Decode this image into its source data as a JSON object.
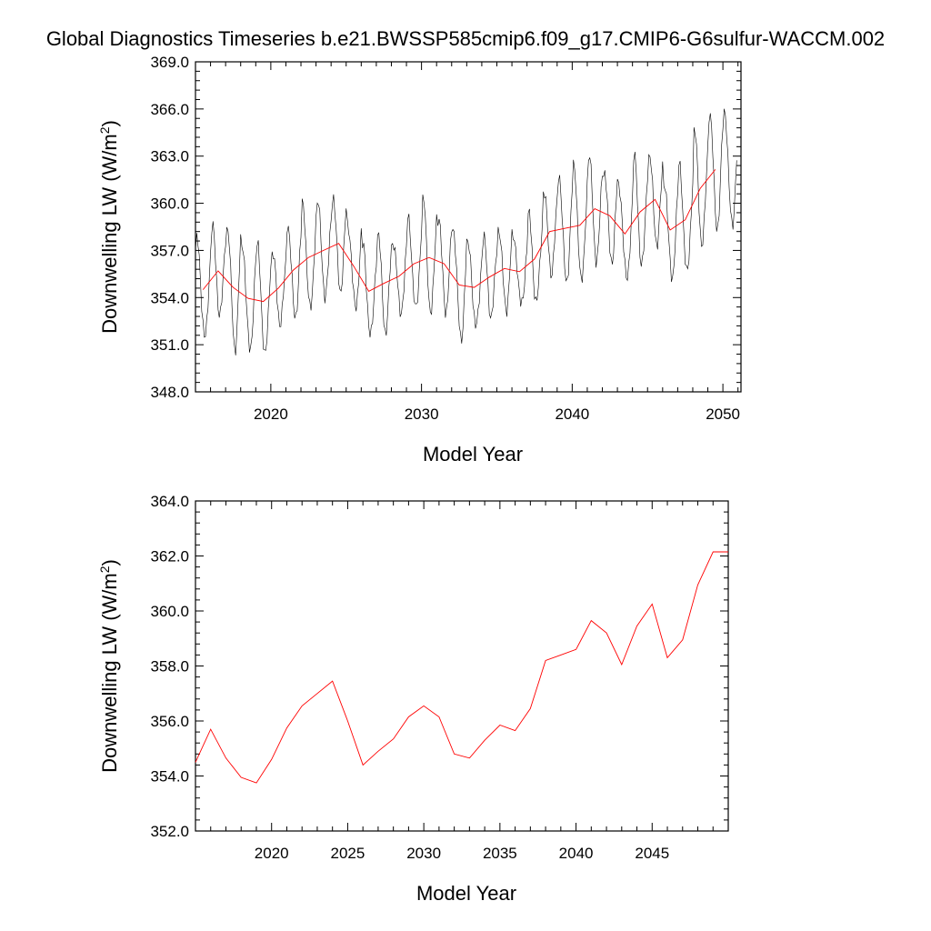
{
  "title": "Global Diagnostics Timeseries b.e21.BWSSP585cmip6.f09_g17.CMIP6-G6sulfur-WACCM.002",
  "colors": {
    "monthly": "#000000",
    "annual": "#ff0000",
    "frame": "#000000"
  },
  "chart_data": [
    {
      "type": "line",
      "xlabel": "Model Year",
      "ylabel_main": "Downwelling LW (W/m",
      "ylabel_sup": "2",
      "ylabel_close": ")",
      "xlim": [
        2015,
        2051.2
      ],
      "ylim": [
        348,
        369
      ],
      "yticks": [
        348,
        351,
        354,
        357,
        360,
        363,
        366,
        369
      ],
      "ytick_labels": [
        "348.0",
        "351.0",
        "354.0",
        "357.0",
        "360.0",
        "363.0",
        "366.0",
        "369.0"
      ],
      "xticks": [
        2020,
        2030,
        2040,
        2050
      ],
      "xtick_labels": [
        "2020",
        "2030",
        "2040",
        "2050"
      ],
      "series": [
        {
          "kind": "monthly",
          "start": 2015.0,
          "step": 0.083333,
          "seasonal_amplitude": [
            3.2,
            2.8,
            3.9,
            3.4,
            3.5,
            2.2,
            3.0,
            3.4,
            3.0,
            3.0,
            2.7,
            2.9,
            3.1,
            2.3,
            3.0,
            3.6,
            3.0,
            3.6,
            2.6,
            2.5,
            2.6,
            2.2,
            2.8,
            2.6,
            3.5,
            3.7,
            3.3,
            2.9,
            3.0,
            3.5,
            2.8,
            3.1,
            3.5,
            3.6,
            3.7
          ],
          "annual_means_ref": "annual"
        },
        {
          "kind": "annual",
          "x": [
            2015.5,
            2016.5,
            2017.5,
            2018.5,
            2019.5,
            2020.5,
            2021.5,
            2022.5,
            2023.5,
            2024.5,
            2025.5,
            2026.5,
            2027.5,
            2028.5,
            2029.5,
            2030.5,
            2031.5,
            2032.5,
            2033.5,
            2034.5,
            2035.5,
            2036.5,
            2037.5,
            2038.5,
            2039.5,
            2040.5,
            2041.5,
            2042.5,
            2043.5,
            2044.5,
            2045.5,
            2046.5,
            2047.5,
            2048.5,
            2049.5
          ],
          "values": [
            354.5,
            355.7,
            354.65,
            353.95,
            353.75,
            354.6,
            355.75,
            356.55,
            357.0,
            357.45,
            356.0,
            354.4,
            354.9,
            355.35,
            356.15,
            356.55,
            356.15,
            354.8,
            354.65,
            355.3,
            355.85,
            355.65,
            356.45,
            358.2,
            358.4,
            358.6,
            359.65,
            359.2,
            358.05,
            359.45,
            360.25,
            358.3,
            358.95,
            360.95,
            362.15
          ]
        }
      ]
    },
    {
      "type": "line",
      "xlabel": "Model Year",
      "ylabel_main": "Downwelling LW (W/m",
      "ylabel_sup": "2",
      "ylabel_close": ")",
      "xlim": [
        2015,
        2050
      ],
      "ylim": [
        352,
        364
      ],
      "yticks": [
        352,
        354,
        356,
        358,
        360,
        362,
        364
      ],
      "ytick_labels": [
        "352.0",
        "354.0",
        "356.0",
        "358.0",
        "360.0",
        "362.0",
        "364.0"
      ],
      "xticks": [
        2020,
        2025,
        2030,
        2035,
        2040,
        2045
      ],
      "xtick_labels": [
        "2020",
        "2025",
        "2030",
        "2035",
        "2040",
        "2045"
      ],
      "series": [
        {
          "kind": "annual",
          "x": [
            2015.0,
            2016.0,
            2017.0,
            2018.0,
            2019.0,
            2020.0,
            2021.0,
            2022.0,
            2023.0,
            2024.0,
            2025.0,
            2026.0,
            2027.0,
            2028.0,
            2029.0,
            2030.0,
            2031.0,
            2032.0,
            2033.0,
            2034.0,
            2035.0,
            2036.0,
            2037.0,
            2038.0,
            2039.0,
            2040.0,
            2041.0,
            2042.0,
            2043.0,
            2044.0,
            2045.0,
            2046.0,
            2047.0,
            2048.0,
            2049.0,
            2050.0
          ],
          "values": [
            354.5,
            355.7,
            354.65,
            353.95,
            353.75,
            354.6,
            355.75,
            356.55,
            357.0,
            357.45,
            356.0,
            354.4,
            354.9,
            355.35,
            356.15,
            356.55,
            356.15,
            354.8,
            354.65,
            355.3,
            355.85,
            355.65,
            356.45,
            358.2,
            358.4,
            358.6,
            359.65,
            359.2,
            358.05,
            359.45,
            360.25,
            358.3,
            358.95,
            360.95,
            362.15,
            362.15
          ]
        }
      ]
    }
  ]
}
